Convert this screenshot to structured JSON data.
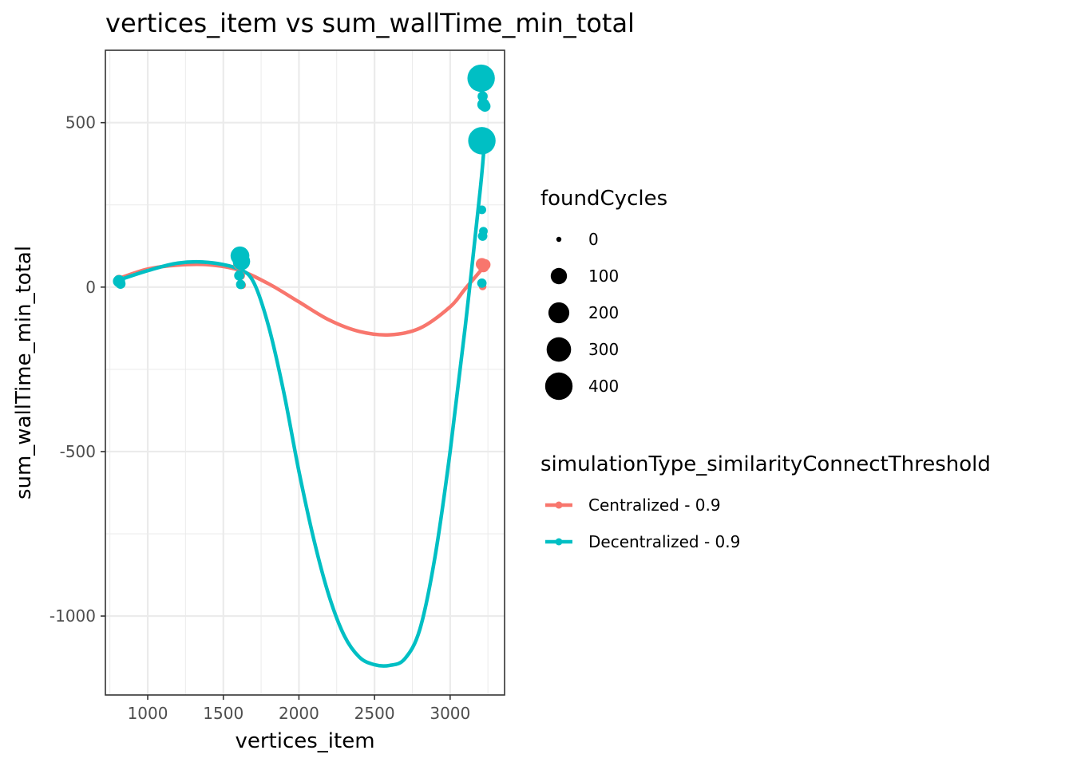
{
  "chart_data": {
    "type": "scatter",
    "title": "vertices_item  vs  sum_wallTime_min_total",
    "xlabel": "vertices_item",
    "ylabel": "sum_wallTime_min_total",
    "xlim": [
      720,
      3360
    ],
    "ylim": [
      -1240,
      720
    ],
    "x_ticks": [
      1000,
      1500,
      2000,
      2500,
      3000
    ],
    "y_ticks": [
      -1000,
      -500,
      0,
      500
    ],
    "x_tick_labels": [
      "1000",
      "1500",
      "2000",
      "2500",
      "3000"
    ],
    "y_tick_labels": [
      "-1000",
      "-500",
      "0",
      "500"
    ],
    "grid": true,
    "legend_position": "right",
    "size_legend": {
      "title": "foundCycles",
      "entries": [
        {
          "label": "0",
          "value": 0
        },
        {
          "label": "100",
          "value": 100
        },
        {
          "label": "200",
          "value": 200
        },
        {
          "label": "300",
          "value": 300
        },
        {
          "label": "400",
          "value": 400
        }
      ]
    },
    "color_legend": {
      "title": "simulationType_similarityConnectThreshold"
    },
    "series": [
      {
        "name": "Centralized - 0.9",
        "color": "#F8766D",
        "points": [
          {
            "x": 810,
            "y": 22,
            "size": 20
          },
          {
            "x": 820,
            "y": 14,
            "size": 10
          },
          {
            "x": 1610,
            "y": 72,
            "size": 60
          },
          {
            "x": 1615,
            "y": 35,
            "size": 10
          },
          {
            "x": 1625,
            "y": 6,
            "size": 5
          },
          {
            "x": 3210,
            "y": 70,
            "size": 40
          },
          {
            "x": 3220,
            "y": 62,
            "size": 30
          },
          {
            "x": 3230,
            "y": 68,
            "size": 30
          },
          {
            "x": 3215,
            "y": 2,
            "size": 5
          }
        ],
        "curve": [
          [
            800,
            25
          ],
          [
            1000,
            55
          ],
          [
            1200,
            67
          ],
          [
            1400,
            68
          ],
          [
            1600,
            52
          ],
          [
            1800,
            10
          ],
          [
            2000,
            -45
          ],
          [
            2200,
            -100
          ],
          [
            2400,
            -135
          ],
          [
            2600,
            -145
          ],
          [
            2800,
            -125
          ],
          [
            3000,
            -60
          ],
          [
            3100,
            -5
          ],
          [
            3230,
            65
          ]
        ]
      },
      {
        "name": "Decentralized - 0.9",
        "color": "#00BFC4",
        "points": [
          {
            "x": 810,
            "y": 18,
            "size": 40
          },
          {
            "x": 820,
            "y": 10,
            "size": 20
          },
          {
            "x": 1610,
            "y": 95,
            "size": 150
          },
          {
            "x": 1620,
            "y": 78,
            "size": 120
          },
          {
            "x": 1605,
            "y": 35,
            "size": 20
          },
          {
            "x": 1615,
            "y": 8,
            "size": 15
          },
          {
            "x": 3205,
            "y": 635,
            "size": 400
          },
          {
            "x": 3210,
            "y": 445,
            "size": 400
          },
          {
            "x": 3215,
            "y": 580,
            "size": 20
          },
          {
            "x": 3220,
            "y": 555,
            "size": 40
          },
          {
            "x": 3230,
            "y": 550,
            "size": 30
          },
          {
            "x": 3210,
            "y": 235,
            "size": 10
          },
          {
            "x": 3220,
            "y": 170,
            "size": 10
          },
          {
            "x": 3215,
            "y": 155,
            "size": 15
          },
          {
            "x": 3210,
            "y": 12,
            "size": 15
          }
        ],
        "curve": [
          [
            800,
            20
          ],
          [
            1000,
            50
          ],
          [
            1200,
            73
          ],
          [
            1400,
            75
          ],
          [
            1600,
            55
          ],
          [
            1700,
            15
          ],
          [
            1800,
            -120
          ],
          [
            1900,
            -320
          ],
          [
            2000,
            -560
          ],
          [
            2100,
            -770
          ],
          [
            2200,
            -940
          ],
          [
            2300,
            -1060
          ],
          [
            2400,
            -1125
          ],
          [
            2500,
            -1148
          ],
          [
            2600,
            -1150
          ],
          [
            2700,
            -1130
          ],
          [
            2800,
            -1040
          ],
          [
            2900,
            -820
          ],
          [
            3000,
            -500
          ],
          [
            3100,
            -120
          ],
          [
            3200,
            300
          ],
          [
            3230,
            460
          ]
        ]
      }
    ]
  }
}
